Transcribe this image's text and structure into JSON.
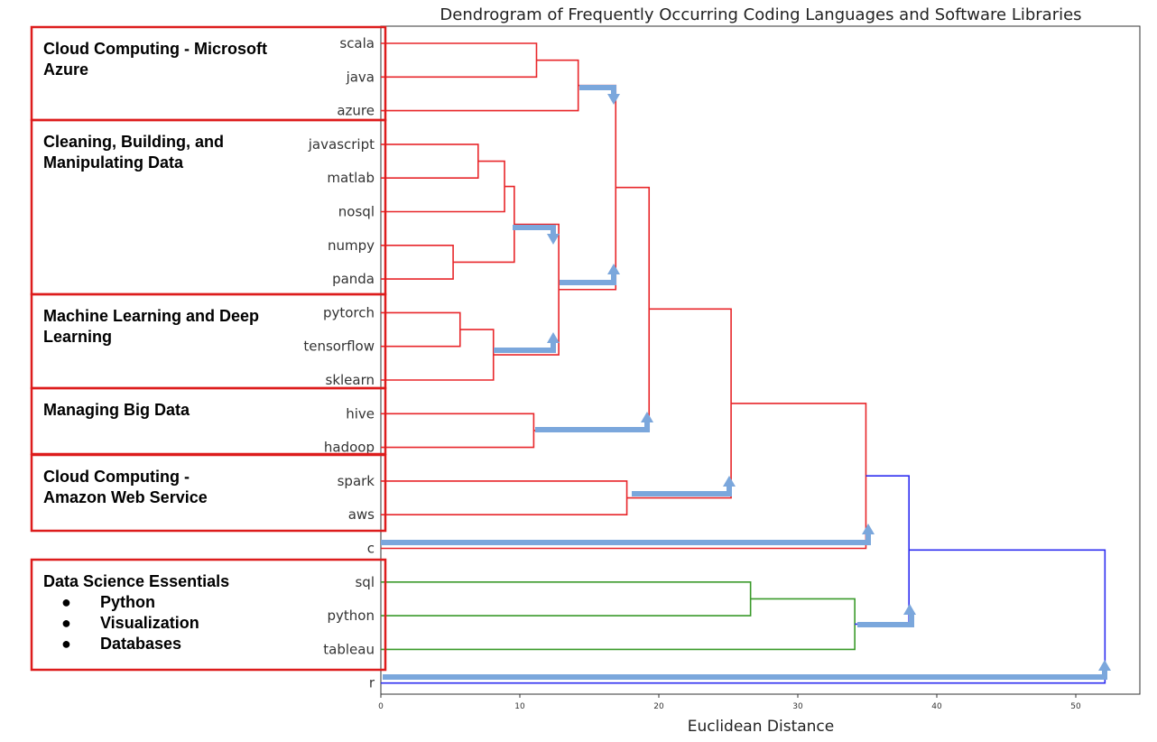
{
  "chart_data": {
    "type": "dendrogram",
    "title": "Dendrogram of Frequently Occurring Coding Languages and Software Libraries",
    "xlabel": "Euclidean Distance",
    "xlim": [
      0,
      54.6
    ],
    "xticks": [
      0,
      10,
      20,
      30,
      40,
      50
    ],
    "leaves": [
      "scala",
      "java",
      "azure",
      "javascript",
      "matlab",
      "nosql",
      "numpy",
      "panda",
      "pytorch",
      "tensorflow",
      "sklearn",
      "hive",
      "hadoop",
      "spark",
      "aws",
      "c",
      "sql",
      "python",
      "tableau",
      "r"
    ],
    "merges": [
      {
        "a": "scala",
        "b": "java",
        "height": 11.2,
        "color": "#e8262a"
      },
      {
        "a": "scala+java",
        "b": "azure",
        "height": 14.2,
        "color": "#e8262a"
      },
      {
        "a": "javascript",
        "b": "matlab",
        "height": 7.0,
        "color": "#e8262a"
      },
      {
        "a": "javascript+matlab",
        "b": "nosql",
        "height": 8.9,
        "color": "#e8262a"
      },
      {
        "a": "numpy",
        "b": "panda",
        "height": 5.2,
        "color": "#e8262a"
      },
      {
        "a": "javascript+matlab+nosql",
        "b": "numpy+panda",
        "height": 9.6,
        "color": "#e8262a"
      },
      {
        "a": "pytorch",
        "b": "tensorflow",
        "height": 5.7,
        "color": "#e8262a"
      },
      {
        "a": "pytorch+tensorflow",
        "b": "sklearn",
        "height": 8.1,
        "color": "#e8262a"
      },
      {
        "a": "data-cluster",
        "b": "ml-cluster",
        "height": 12.8,
        "color": "#e8262a"
      },
      {
        "a": "azure-cluster",
        "b": "data+ml",
        "height": 16.9,
        "color": "#e8262a"
      },
      {
        "a": "hive",
        "b": "hadoop",
        "height": 11.0,
        "color": "#e8262a"
      },
      {
        "a": "upper-cluster",
        "b": "hive+hadoop",
        "height": 19.3,
        "color": "#e8262a"
      },
      {
        "a": "spark",
        "b": "aws",
        "height": 17.7,
        "color": "#e8262a"
      },
      {
        "a": "upper+bigdata",
        "b": "spark+aws",
        "height": 25.2,
        "color": "#e8262a"
      },
      {
        "a": "red-cluster",
        "b": "c",
        "height": 34.9,
        "color": "#e8262a"
      },
      {
        "a": "sql",
        "b": "python",
        "height": 26.6,
        "color": "#3a9a2a"
      },
      {
        "a": "sql+python",
        "b": "tableau",
        "height": 34.1,
        "color": "#3a9a2a"
      },
      {
        "a": "red+c",
        "b": "green-cluster",
        "height": 38.0,
        "color": "#2d2df0"
      },
      {
        "a": "all-but-r",
        "b": "r",
        "height": 52.1,
        "color": "#2d2df0"
      }
    ]
  },
  "groups": [
    {
      "title_lines": [
        "Cloud Computing - Microsoft",
        "Azure"
      ]
    },
    {
      "title_lines": [
        "Cleaning, Building, and",
        "Manipulating Data"
      ]
    },
    {
      "title_lines": [
        "Machine Learning and Deep",
        "Learning"
      ]
    },
    {
      "title_lines": [
        "Managing Big Data"
      ]
    },
    {
      "title_lines": [
        "Cloud Computing -",
        "Amazon Web Service"
      ]
    },
    {
      "title_lines": [
        "Data Science Essentials"
      ],
      "bullets": [
        "Python",
        "Visualization",
        "Databases"
      ]
    }
  ],
  "colors": {
    "cluster_red": "#e8262a",
    "cluster_green": "#3a9a2a",
    "cluster_blue": "#2d2df0",
    "annotation_arrow": "#7ba7dc",
    "box_border": "#dd1c1c"
  }
}
